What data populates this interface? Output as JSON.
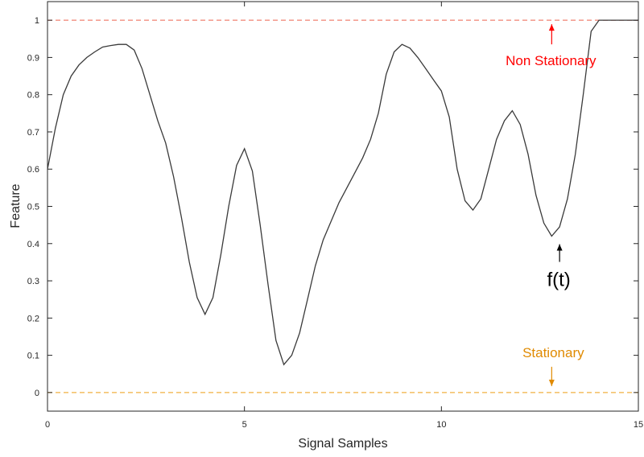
{
  "chart_data": {
    "type": "line",
    "title": "",
    "xlabel": "Signal Samples",
    "ylabel": "Feature",
    "xlim": [
      0,
      15
    ],
    "ylim": [
      -0.05,
      1.05
    ],
    "grid": false,
    "xticks": [
      0,
      5,
      10,
      15
    ],
    "yticks": [
      0,
      0.1,
      0.2,
      0.3,
      0.4,
      0.5,
      0.6,
      0.7,
      0.8,
      0.9,
      1
    ],
    "xtick_labels": [
      "0",
      "5",
      "10",
      "15"
    ],
    "ytick_labels": [
      "0",
      "0.1",
      "0.2",
      "0.3",
      "0.4",
      "0.5",
      "0.6",
      "0.7",
      "0.8",
      "0.9",
      "1"
    ],
    "series": [
      {
        "color": "#3a3a3a",
        "x": [
          0,
          0.2,
          0.4,
          0.6,
          0.8,
          1.0,
          1.2,
          1.4,
          1.6,
          1.8,
          2.0,
          2.2,
          2.4,
          2.6,
          2.8,
          3.0,
          3.2,
          3.4,
          3.6,
          3.8,
          4.0,
          4.2,
          4.4,
          4.6,
          4.8,
          5.0,
          5.2,
          5.4,
          5.6,
          5.8,
          6.0,
          6.2,
          6.4,
          6.6,
          6.8,
          7.0,
          7.2,
          7.4,
          7.6,
          7.8,
          8.0,
          8.2,
          8.4,
          8.6,
          8.8,
          9.0,
          9.2,
          9.4,
          9.6,
          9.8,
          10.0,
          10.2,
          10.4,
          10.6,
          10.8,
          11.0,
          11.2,
          11.4,
          11.6,
          11.8,
          12.0,
          12.2,
          12.4,
          12.6,
          12.8,
          13.0,
          13.2,
          13.4,
          13.6,
          13.8,
          14.0,
          14.2,
          14.4,
          14.6,
          14.8,
          15.0
        ],
        "y": [
          0.6,
          0.71,
          0.8,
          0.85,
          0.88,
          0.9,
          0.915,
          0.928,
          0.932,
          0.935,
          0.935,
          0.92,
          0.87,
          0.8,
          0.73,
          0.67,
          0.58,
          0.47,
          0.35,
          0.255,
          0.21,
          0.255,
          0.37,
          0.5,
          0.61,
          0.655,
          0.595,
          0.45,
          0.29,
          0.14,
          0.075,
          0.1,
          0.16,
          0.25,
          0.34,
          0.41,
          0.46,
          0.51,
          0.55,
          0.59,
          0.63,
          0.68,
          0.75,
          0.855,
          0.915,
          0.935,
          0.925,
          0.9,
          0.87,
          0.84,
          0.81,
          0.74,
          0.6,
          0.515,
          0.49,
          0.52,
          0.6,
          0.68,
          0.73,
          0.757,
          0.72,
          0.64,
          0.53,
          0.455,
          0.42,
          0.445,
          0.52,
          0.64,
          0.8,
          0.97,
          1.0,
          1.0,
          1.0,
          1.0,
          1.0,
          1.0
        ]
      }
    ],
    "reference_lines": [
      {
        "y": 1,
        "style": "dashed",
        "color": "#f08070"
      },
      {
        "y": 0,
        "style": "dashed",
        "color": "#f0b040"
      }
    ],
    "annotations": [
      {
        "text": "Non Stationary",
        "color": "#ff0000",
        "arrow": "up",
        "arrow_target": [
          12.8,
          1.0
        ]
      },
      {
        "text": "Stationary",
        "color": "#e08a00",
        "arrow": "down",
        "arrow_target": [
          12.8,
          0.0
        ]
      },
      {
        "text": "f(t)",
        "color": "#000000",
        "arrow": "up",
        "arrow_target": [
          13.0,
          0.42
        ]
      }
    ]
  }
}
